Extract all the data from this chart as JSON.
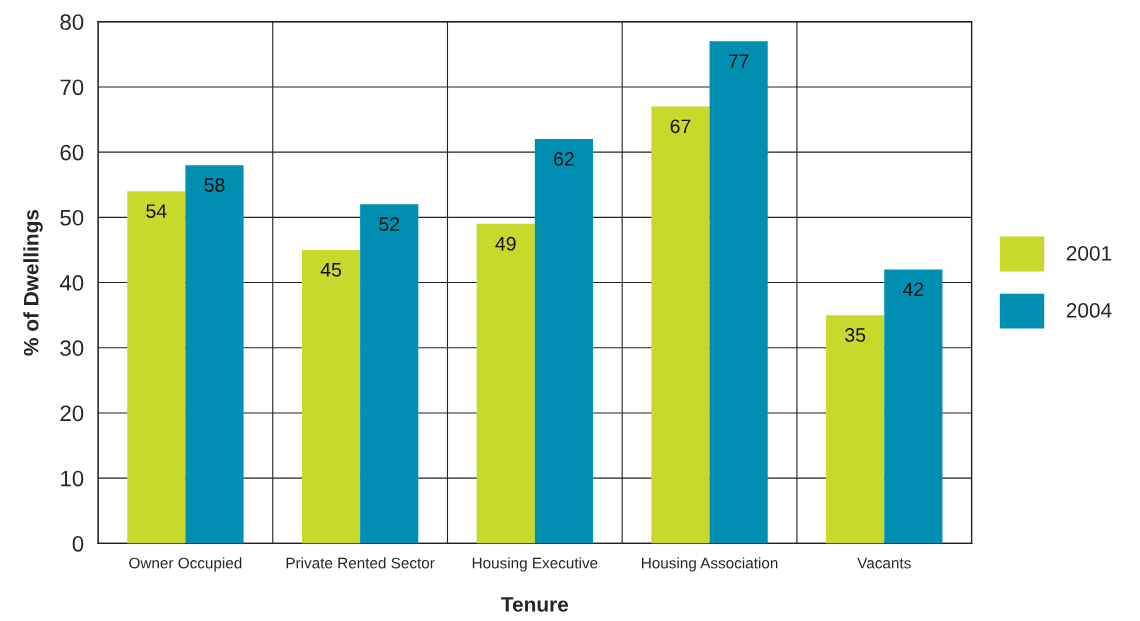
{
  "chart_data": {
    "type": "bar",
    "xlabel": "Tenure",
    "ylabel": "% of Dwellings",
    "categories": [
      "Owner Occupied",
      "Private Rented Sector",
      "Housing Executive",
      "Housing Association",
      "Vacants"
    ],
    "series": [
      {
        "name": "2001",
        "color": "#c8d92b",
        "values": [
          54,
          45,
          49,
          67,
          35
        ]
      },
      {
        "name": "2004",
        "color": "#008fb0",
        "values": [
          58,
          52,
          62,
          77,
          42
        ]
      }
    ],
    "ylim": [
      0,
      80
    ],
    "yticks": [
      0,
      10,
      20,
      30,
      40,
      50,
      60,
      70,
      80
    ],
    "grid": true,
    "legend": "right",
    "data_labels": true
  }
}
